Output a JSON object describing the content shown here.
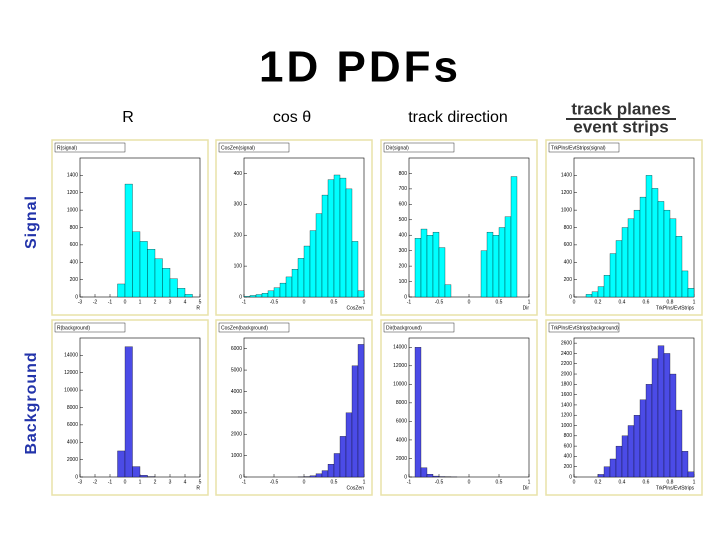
{
  "slide": {
    "title": "1D  PDFs",
    "column_headers": [
      "R",
      "cos θ",
      "track direction"
    ],
    "fraction": {
      "numerator": "track planes",
      "denominator": "event strips"
    },
    "row_labels": [
      "Signal",
      "Background"
    ]
  },
  "chart_data": [
    {
      "type": "histogram",
      "title": "R(signal)",
      "xlabel": "R",
      "color": "#00ffff",
      "bins": [
        -3,
        -2.5,
        -2,
        -1.5,
        -1,
        -0.5,
        0,
        0.5,
        1,
        1.5,
        2,
        2.5,
        3,
        3.5,
        4,
        4.5,
        5
      ],
      "counts": [
        0,
        0,
        0,
        0,
        0,
        150,
        1300,
        750,
        640,
        550,
        440,
        330,
        210,
        100,
        30,
        0
      ],
      "xlim": [
        -3,
        5
      ],
      "xticks": [
        -3,
        -2,
        -1,
        0,
        1,
        2,
        3,
        4,
        5
      ],
      "ylim": [
        0,
        1600
      ],
      "yticks": [
        0,
        200,
        400,
        600,
        800,
        1000,
        1200,
        1400
      ]
    },
    {
      "type": "histogram",
      "title": "CosZen(signal)",
      "xlabel": "CosZen",
      "color": "#00ffff",
      "bins": [
        -1,
        -0.9,
        -0.8,
        -0.7,
        -0.6,
        -0.5,
        -0.4,
        -0.3,
        -0.2,
        -0.1,
        0,
        0.1,
        0.2,
        0.3,
        0.4,
        0.5,
        0.6,
        0.7,
        0.8,
        0.9,
        1
      ],
      "counts": [
        2,
        5,
        8,
        12,
        20,
        30,
        45,
        65,
        90,
        125,
        165,
        215,
        270,
        330,
        380,
        395,
        385,
        350,
        180,
        20
      ],
      "xlim": [
        -1,
        1
      ],
      "xticks": [
        -1,
        -0.5,
        0,
        0.5,
        1
      ],
      "ylim": [
        0,
        450
      ],
      "yticks": [
        0,
        100,
        200,
        300,
        400
      ]
    },
    {
      "type": "histogram",
      "title": "Dir(signal)",
      "xlabel": "Dir",
      "color": "#00ffff",
      "bins": [
        -1,
        -0.9,
        -0.8,
        -0.7,
        -0.6,
        -0.5,
        -0.4,
        -0.3,
        -0.2,
        -0.1,
        0,
        0.1,
        0.2,
        0.3,
        0.4,
        0.5,
        0.6,
        0.7,
        0.8,
        0.9,
        1
      ],
      "counts": [
        0,
        380,
        440,
        400,
        420,
        320,
        80,
        0,
        0,
        0,
        0,
        0,
        300,
        420,
        400,
        450,
        520,
        780,
        0,
        0
      ],
      "xlim": [
        -1,
        1
      ],
      "xticks": [
        -1,
        -0.5,
        0,
        0.5,
        1
      ],
      "ylim": [
        0,
        900
      ],
      "yticks": [
        0,
        100,
        200,
        300,
        400,
        500,
        600,
        700,
        800
      ]
    },
    {
      "type": "histogram",
      "title": "TrkPlns/EvtStrips(signal)",
      "xlabel": "TrkPlns/EvtStrips",
      "color": "#00ffff",
      "bins": [
        0,
        0.05,
        0.1,
        0.15,
        0.2,
        0.25,
        0.3,
        0.35,
        0.4,
        0.45,
        0.5,
        0.55,
        0.6,
        0.65,
        0.7,
        0.75,
        0.8,
        0.85,
        0.9,
        0.95,
        1
      ],
      "counts": [
        0,
        0,
        30,
        60,
        120,
        250,
        500,
        650,
        800,
        900,
        1000,
        1150,
        1400,
        1250,
        1100,
        1000,
        900,
        700,
        300,
        100
      ],
      "xlim": [
        0,
        1
      ],
      "xticks": [
        0,
        0.2,
        0.4,
        0.6,
        0.8,
        1
      ],
      "ylim": [
        0,
        1600
      ],
      "yticks": [
        0,
        200,
        400,
        600,
        800,
        1000,
        1200,
        1400
      ]
    },
    {
      "type": "histogram",
      "title": "R(background)",
      "xlabel": "R",
      "color": "#4b4be6",
      "bins": [
        -3,
        -2.5,
        -2,
        -1.5,
        -1,
        -0.5,
        0,
        0.5,
        1,
        1.5,
        2,
        2.5,
        3,
        3.5,
        4,
        4.5,
        5
      ],
      "counts": [
        0,
        0,
        0,
        0,
        0,
        3000,
        15000,
        1200,
        200,
        50,
        0,
        0,
        0,
        0,
        0,
        0
      ],
      "xlim": [
        -3,
        5
      ],
      "xticks": [
        -3,
        -2,
        -1,
        0,
        1,
        2,
        3,
        4,
        5
      ],
      "ylim": [
        0,
        16000
      ],
      "yticks": [
        0,
        2000,
        4000,
        6000,
        8000,
        10000,
        12000,
        14000
      ]
    },
    {
      "type": "histogram",
      "title": "CosZen(background)",
      "xlabel": "CosZen",
      "color": "#4b4be6",
      "bins": [
        -1,
        -0.9,
        -0.8,
        -0.7,
        -0.6,
        -0.5,
        -0.4,
        -0.3,
        -0.2,
        -0.1,
        0,
        0.1,
        0.2,
        0.3,
        0.4,
        0.5,
        0.6,
        0.7,
        0.8,
        0.9,
        1
      ],
      "counts": [
        0,
        0,
        0,
        0,
        0,
        0,
        0,
        0,
        0,
        5,
        20,
        60,
        150,
        300,
        600,
        1100,
        1900,
        3000,
        5200,
        6200
      ],
      "xlim": [
        -1,
        1
      ],
      "xticks": [
        -1,
        -0.5,
        0,
        0.5,
        1
      ],
      "ylim": [
        0,
        6500
      ],
      "yticks": [
        0,
        1000,
        2000,
        3000,
        4000,
        5000,
        6000
      ]
    },
    {
      "type": "histogram",
      "title": "Dir(background)",
      "xlabel": "Dir",
      "color": "#4b4be6",
      "bins": [
        -1,
        -0.9,
        -0.8,
        -0.7,
        -0.6,
        -0.5,
        -0.4,
        -0.3,
        -0.2,
        -0.1,
        0,
        0.1,
        0.2,
        0.3,
        0.4,
        0.5,
        0.6,
        0.7,
        0.8,
        0.9,
        1
      ],
      "counts": [
        0,
        14000,
        1000,
        300,
        100,
        50,
        20,
        10,
        0,
        0,
        0,
        0,
        0,
        0,
        0,
        0,
        0,
        0,
        0,
        0
      ],
      "xlim": [
        -1,
        1
      ],
      "xticks": [
        -1,
        -0.5,
        0,
        0.5,
        1
      ],
      "ylim": [
        0,
        15000
      ],
      "yticks": [
        0,
        2000,
        4000,
        6000,
        8000,
        10000,
        12000,
        14000
      ]
    },
    {
      "type": "histogram",
      "title": "TrkPlns/EvtStrips(background)",
      "xlabel": "TrkPlns/EvtStrips",
      "color": "#4b4be6",
      "bins": [
        0,
        0.05,
        0.1,
        0.15,
        0.2,
        0.25,
        0.3,
        0.35,
        0.4,
        0.45,
        0.5,
        0.55,
        0.6,
        0.65,
        0.7,
        0.75,
        0.8,
        0.85,
        0.9,
        0.95,
        1
      ],
      "counts": [
        0,
        0,
        0,
        0,
        50,
        200,
        350,
        600,
        800,
        1000,
        1200,
        1500,
        1800,
        2300,
        2550,
        2400,
        2000,
        1300,
        500,
        100
      ],
      "xlim": [
        0,
        1
      ],
      "xticks": [
        0,
        0.2,
        0.4,
        0.6,
        0.8,
        1
      ],
      "ylim": [
        0,
        2700
      ],
      "yticks": [
        0,
        200,
        400,
        600,
        800,
        1000,
        1200,
        1400,
        1600,
        1800,
        2000,
        2200,
        2400,
        2600
      ]
    }
  ]
}
